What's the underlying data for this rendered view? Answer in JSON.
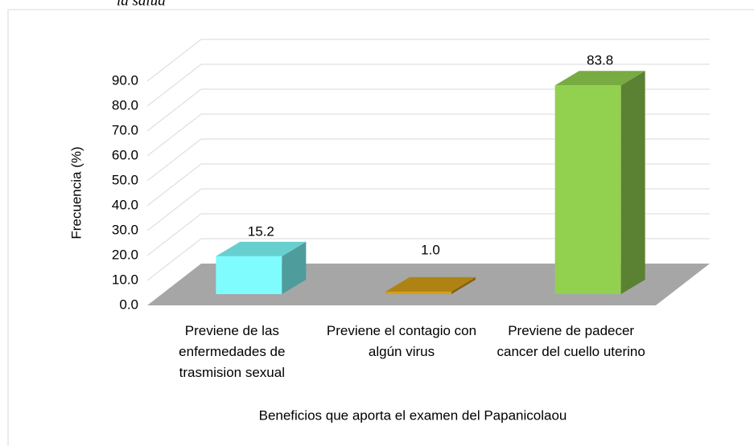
{
  "caption": "la salud",
  "chart_data": {
    "type": "bar3d",
    "categories": [
      "Previene de las enfermedades de trasmision sexual",
      "Previene el contagio con algún virus",
      "Previene de padecer cancer del cuello uterino"
    ],
    "values": [
      15.2,
      1.0,
      83.8
    ],
    "value_labels": [
      "15.2",
      "1.0",
      "83.8"
    ],
    "colors": [
      "#7ffcfd",
      "#d4a017",
      "#92d050"
    ],
    "ylabel": "Frecuencia (%)",
    "xlabel": "Beneficios que aporta el examen del Papanicolaou",
    "ylim": [
      0,
      90
    ],
    "yticks": [
      {
        "value": 0,
        "label": "0.0"
      },
      {
        "value": 10,
        "label": "10.0"
      },
      {
        "value": 20,
        "label": "20.0"
      },
      {
        "value": 30,
        "label": "30.0"
      },
      {
        "value": 40,
        "label": "40.0"
      },
      {
        "value": 50,
        "label": "50.0"
      },
      {
        "value": 60,
        "label": "60.0"
      },
      {
        "value": 70,
        "label": "70.0"
      },
      {
        "value": 80,
        "label": "80.0"
      },
      {
        "value": 90,
        "label": "90.0"
      }
    ],
    "grid": true
  }
}
